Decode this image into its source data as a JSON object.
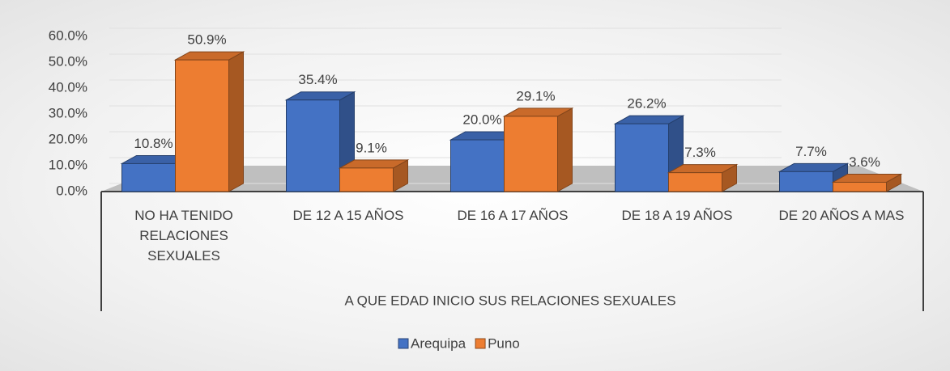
{
  "chart_data": {
    "type": "bar3d",
    "x_label": "A QUE EDAD INICIO SUS RELACIONES SEXUALES",
    "categories": [
      "NO HA TENIDO RELACIONES SEXUALES",
      "DE 12 A 15 AÑOS",
      "DE 16 A 17 AÑOS",
      "DE 18 A 19 AÑOS",
      "DE 20 AÑOS A MAS"
    ],
    "series": [
      {
        "name": "Arequipa",
        "color": "#4472c4",
        "values": [
          10.8,
          35.4,
          20.0,
          26.2,
          7.7
        ],
        "value_labels": [
          "10.8%",
          "35.4%",
          "20.0%",
          "26.2%",
          "7.7%"
        ]
      },
      {
        "name": "Puno",
        "color": "#ed7d31",
        "values": [
          50.9,
          9.1,
          29.1,
          7.3,
          3.6
        ],
        "value_labels": [
          "50.9%",
          "9.1%",
          "29.1%",
          "7.3%",
          "3.6%"
        ]
      }
    ],
    "ylim": [
      0,
      60
    ],
    "yticks": [
      {
        "value": 0,
        "label": "0.0%"
      },
      {
        "value": 10,
        "label": "10.0%"
      },
      {
        "value": 20,
        "label": "20.0%"
      },
      {
        "value": 30,
        "label": "30.0%"
      },
      {
        "value": 40,
        "label": "40.0%"
      },
      {
        "value": 50,
        "label": "50.0%"
      },
      {
        "value": 60,
        "label": "60.0%"
      }
    ],
    "grid": true,
    "legend": "bottom"
  }
}
